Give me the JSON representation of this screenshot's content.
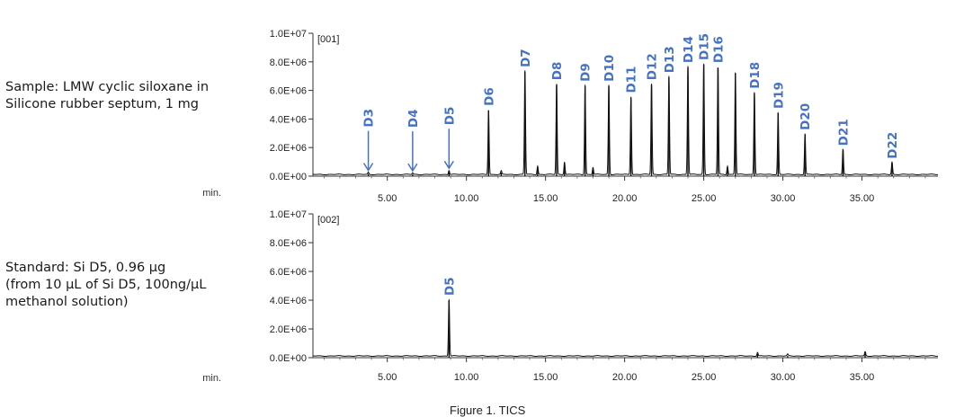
{
  "figure_caption": "Figure 1. TICS",
  "chart_data": [
    {
      "type": "line",
      "tag": "[001]",
      "side_label": [
        "Sample: LMW cyclic siloxane in",
        "Silicone rubber septum, 1 mg"
      ],
      "xlabel": "min.",
      "xlim": [
        0.3,
        39.8
      ],
      "xticks": [
        "5.00",
        "10.00",
        "15.00",
        "20.00",
        "25.00",
        "30.00",
        "35.00"
      ],
      "xtick_values": [
        5,
        10,
        15,
        20,
        25,
        30,
        35
      ],
      "ylim": [
        0,
        10000000
      ],
      "yticks": [
        "0.0E+00",
        "2.0E+06",
        "4.0E+06",
        "6.0E+06",
        "8.0E+06",
        "1.0E+07"
      ],
      "ytick_values": [
        0,
        2000000,
        4000000,
        6000000,
        8000000,
        10000000
      ],
      "peaks": [
        {
          "x": 3.8,
          "y": 150000
        },
        {
          "x": 6.6,
          "y": 120000
        },
        {
          "x": 8.9,
          "y": 300000
        },
        {
          "x": 11.4,
          "y": 4600000
        },
        {
          "x": 12.2,
          "y": 250000
        },
        {
          "x": 13.7,
          "y": 7300000
        },
        {
          "x": 14.5,
          "y": 600000
        },
        {
          "x": 15.7,
          "y": 6400000
        },
        {
          "x": 16.2,
          "y": 900000
        },
        {
          "x": 17.5,
          "y": 6300000
        },
        {
          "x": 18.0,
          "y": 500000
        },
        {
          "x": 19.0,
          "y": 6300000
        },
        {
          "x": 20.4,
          "y": 5500000
        },
        {
          "x": 21.7,
          "y": 6400000
        },
        {
          "x": 22.8,
          "y": 6900000
        },
        {
          "x": 24.0,
          "y": 7600000
        },
        {
          "x": 25.0,
          "y": 7800000
        },
        {
          "x": 25.9,
          "y": 7600000
        },
        {
          "x": 26.5,
          "y": 600000
        },
        {
          "x": 27.0,
          "y": 7200000
        },
        {
          "x": 28.2,
          "y": 5800000
        },
        {
          "x": 29.7,
          "y": 4400000
        },
        {
          "x": 31.4,
          "y": 2900000
        },
        {
          "x": 33.8,
          "y": 1800000
        },
        {
          "x": 36.9,
          "y": 900000
        }
      ],
      "annotations": [
        {
          "text": "D3",
          "x": 3.8,
          "y": 150000,
          "arrow": true
        },
        {
          "text": "D4",
          "x": 6.6,
          "y": 120000,
          "arrow": true
        },
        {
          "text": "D5",
          "x": 8.9,
          "y": 300000,
          "arrow": true
        },
        {
          "text": "D6",
          "x": 11.4,
          "y": 4600000
        },
        {
          "text": "D7",
          "x": 13.7,
          "y": 7300000
        },
        {
          "text": "D8",
          "x": 15.7,
          "y": 6400000
        },
        {
          "text": "D9",
          "x": 17.5,
          "y": 6300000
        },
        {
          "text": "D10",
          "x": 19.0,
          "y": 6300000
        },
        {
          "text": "D11",
          "x": 20.4,
          "y": 5500000
        },
        {
          "text": "D12",
          "x": 21.7,
          "y": 6400000
        },
        {
          "text": "D13",
          "x": 22.8,
          "y": 6900000
        },
        {
          "text": "D14",
          "x": 24.0,
          "y": 7600000
        },
        {
          "text": "D15",
          "x": 25.0,
          "y": 7800000
        },
        {
          "text": "D16",
          "x": 25.9,
          "y": 7600000
        },
        {
          "text": "D18",
          "x": 28.2,
          "y": 5800000
        },
        {
          "text": "D19",
          "x": 29.7,
          "y": 4400000
        },
        {
          "text": "D20",
          "x": 31.4,
          "y": 2900000
        },
        {
          "text": "D21",
          "x": 33.8,
          "y": 1800000
        },
        {
          "text": "D22",
          "x": 36.9,
          "y": 900000
        }
      ]
    },
    {
      "type": "line",
      "tag": "[002]",
      "side_label": [
        "Standard: Si D5, 0.96 µg",
        "(from 10 µL of Si D5, 100ng/µL",
        "methanol solution)"
      ],
      "xlabel": "min.",
      "xlim": [
        0.3,
        39.8
      ],
      "xticks": [
        "5.00",
        "10.00",
        "15.00",
        "20.00",
        "25.00",
        "30.00",
        "35.00"
      ],
      "xtick_values": [
        5,
        10,
        15,
        20,
        25,
        30,
        35
      ],
      "ylim": [
        0,
        10000000
      ],
      "yticks": [
        "0.0E+00",
        "2.0E+06",
        "4.0E+06",
        "6.0E+06",
        "8.0E+06",
        "1.0E+07"
      ],
      "ytick_values": [
        0,
        2000000,
        4000000,
        6000000,
        8000000,
        10000000
      ],
      "peaks": [
        {
          "x": 8.9,
          "y": 4000000
        },
        {
          "x": 28.4,
          "y": 250000
        },
        {
          "x": 30.3,
          "y": 120000
        },
        {
          "x": 35.2,
          "y": 300000
        }
      ],
      "annotations": [
        {
          "text": "D5",
          "x": 8.9,
          "y": 4000000
        }
      ]
    }
  ]
}
